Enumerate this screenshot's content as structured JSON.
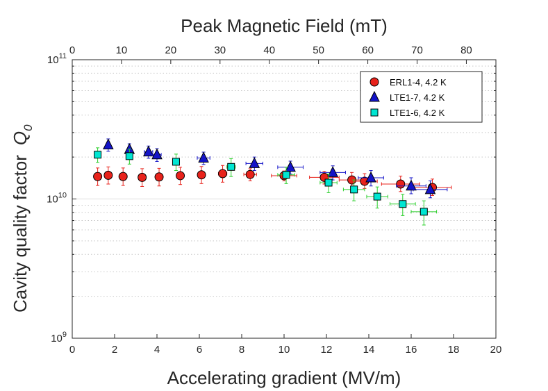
{
  "chart_data": {
    "type": "scatter",
    "title": "",
    "xlabel": "Accelerating gradient (MV/m)",
    "ylabel": "Cavity quality factor",
    "ylabel_symbol": "Q",
    "ylabel_subscript": "0",
    "x2label": "Peak Magnetic Field (mT)",
    "xlim": [
      0,
      20
    ],
    "ylim": [
      1000000000.0,
      100000000000.0
    ],
    "yscale": "log",
    "x2lim": [
      0,
      86
    ],
    "xticks": [
      0,
      2,
      4,
      6,
      8,
      10,
      12,
      14,
      16,
      18,
      20
    ],
    "x2ticks": [
      0,
      10,
      20,
      30,
      40,
      50,
      60,
      70,
      80
    ],
    "yticks": [
      {
        "value": 1000000000.0,
        "base": "10",
        "exp": "9"
      },
      {
        "value": 10000000000.0,
        "base": "10",
        "exp": "10"
      },
      {
        "value": 100000000000.0,
        "base": "10",
        "exp": "11"
      }
    ],
    "grid": "horizontal-dotted",
    "legend_position": "top-right",
    "series": [
      {
        "name": "ERL1-4, 4.2 K",
        "marker": "circle",
        "color": "#e8221b",
        "err_color": "#e8221b",
        "points": [
          {
            "x": 1.2,
            "y": 14500000000.0,
            "xerr": 0,
            "yerr_lo": 2000000000.0,
            "yerr_hi": 2200000000.0
          },
          {
            "x": 1.7,
            "y": 14800000000.0,
            "xerr": 0,
            "yerr_lo": 2000000000.0,
            "yerr_hi": 2200000000.0
          },
          {
            "x": 2.4,
            "y": 14500000000.0,
            "xerr": 0,
            "yerr_lo": 2000000000.0,
            "yerr_hi": 2200000000.0
          },
          {
            "x": 3.3,
            "y": 14300000000.0,
            "xerr": 0,
            "yerr_lo": 2000000000.0,
            "yerr_hi": 2200000000.0
          },
          {
            "x": 4.1,
            "y": 14400000000.0,
            "xerr": 0,
            "yerr_lo": 2000000000.0,
            "yerr_hi": 2200000000.0
          },
          {
            "x": 5.1,
            "y": 14700000000.0,
            "xerr": 0.1,
            "yerr_lo": 2000000000.0,
            "yerr_hi": 2200000000.0
          },
          {
            "x": 6.1,
            "y": 14900000000.0,
            "xerr": 0.15,
            "yerr_lo": 2000000000.0,
            "yerr_hi": 2200000000.0
          },
          {
            "x": 7.1,
            "y": 15200000000.0,
            "xerr": 0.2,
            "yerr_lo": 2000000000.0,
            "yerr_hi": 2200000000.0
          },
          {
            "x": 8.4,
            "y": 15000000000.0,
            "xerr": 0.3,
            "yerr_lo": 1500000000.0,
            "yerr_hi": 1500000000.0
          },
          {
            "x": 10.0,
            "y": 14700000000.0,
            "xerr": 0.6,
            "yerr_lo": 1200000000.0,
            "yerr_hi": 1200000000.0
          },
          {
            "x": 11.9,
            "y": 14300000000.0,
            "xerr": 0.7,
            "yerr_lo": 1500000000.0,
            "yerr_hi": 1500000000.0
          },
          {
            "x": 13.2,
            "y": 13700000000.0,
            "xerr": 0.6,
            "yerr_lo": 1500000000.0,
            "yerr_hi": 1800000000.0
          },
          {
            "x": 13.8,
            "y": 13400000000.0,
            "xerr": 0.6,
            "yerr_lo": 1500000000.0,
            "yerr_hi": 1800000000.0
          },
          {
            "x": 15.5,
            "y": 12800000000.0,
            "xerr": 0.9,
            "yerr_lo": 1500000000.0,
            "yerr_hi": 1800000000.0
          },
          {
            "x": 17.0,
            "y": 12100000000.0,
            "xerr": 0.9,
            "yerr_lo": 1500000000.0,
            "yerr_hi": 1800000000.0
          }
        ]
      },
      {
        "name": "LTE1-7, 4.2 K",
        "marker": "triangle",
        "color": "#1414c8",
        "err_color": "#1414c8",
        "points": [
          {
            "x": 1.7,
            "y": 24500000000.0,
            "xerr": 0,
            "yerr_lo": 2500000000.0,
            "yerr_hi": 2500000000.0
          },
          {
            "x": 2.7,
            "y": 22700000000.0,
            "xerr": 0,
            "yerr_lo": 2200000000.0,
            "yerr_hi": 2200000000.0
          },
          {
            "x": 3.6,
            "y": 21800000000.0,
            "xerr": 0.2,
            "yerr_lo": 2200000000.0,
            "yerr_hi": 2200000000.0
          },
          {
            "x": 4.0,
            "y": 20800000000.0,
            "xerr": 0.2,
            "yerr_lo": 2200000000.0,
            "yerr_hi": 2200000000.0
          },
          {
            "x": 6.2,
            "y": 19700000000.0,
            "xerr": 0.3,
            "yerr_lo": 2000000000.0,
            "yerr_hi": 2000000000.0
          },
          {
            "x": 8.6,
            "y": 18000000000.0,
            "xerr": 0.4,
            "yerr_lo": 2000000000.0,
            "yerr_hi": 2000000000.0
          },
          {
            "x": 10.3,
            "y": 16900000000.0,
            "xerr": 0.6,
            "yerr_lo": 1800000000.0,
            "yerr_hi": 1800000000.0
          },
          {
            "x": 12.3,
            "y": 15500000000.0,
            "xerr": 0.6,
            "yerr_lo": 1800000000.0,
            "yerr_hi": 1800000000.0
          },
          {
            "x": 14.1,
            "y": 14200000000.0,
            "xerr": 0.6,
            "yerr_lo": 1800000000.0,
            "yerr_hi": 1800000000.0
          },
          {
            "x": 16.0,
            "y": 12400000000.0,
            "xerr": 0.7,
            "yerr_lo": 1500000000.0,
            "yerr_hi": 1800000000.0
          },
          {
            "x": 16.9,
            "y": 11700000000.0,
            "xerr": 0.8,
            "yerr_lo": 1500000000.0,
            "yerr_hi": 1800000000.0
          }
        ]
      },
      {
        "name": "LTE1-6, 4.2 K",
        "marker": "square",
        "color": "#00e6d2",
        "err_color": "#2ccf2c",
        "points": [
          {
            "x": 1.2,
            "y": 20800000000.0,
            "xerr": 0,
            "yerr_lo": 2500000000.0,
            "yerr_hi": 2500000000.0
          },
          {
            "x": 2.7,
            "y": 20300000000.0,
            "xerr": 0,
            "yerr_lo": 2500000000.0,
            "yerr_hi": 2500000000.0
          },
          {
            "x": 4.9,
            "y": 18500000000.0,
            "xerr": 0,
            "yerr_lo": 2500000000.0,
            "yerr_hi": 2500000000.0
          },
          {
            "x": 7.5,
            "y": 17000000000.0,
            "xerr": 0.2,
            "yerr_lo": 2500000000.0,
            "yerr_hi": 2500000000.0
          },
          {
            "x": 10.1,
            "y": 14900000000.0,
            "xerr": 0.4,
            "yerr_lo": 2000000000.0,
            "yerr_hi": 2000000000.0
          },
          {
            "x": 12.1,
            "y": 13100000000.0,
            "xerr": 0.4,
            "yerr_lo": 2000000000.0,
            "yerr_hi": 2000000000.0
          },
          {
            "x": 13.3,
            "y": 11700000000.0,
            "xerr": 0.5,
            "yerr_lo": 2000000000.0,
            "yerr_hi": 2000000000.0
          },
          {
            "x": 14.4,
            "y": 10400000000.0,
            "xerr": 0.5,
            "yerr_lo": 1800000000.0,
            "yerr_hi": 1800000000.0
          },
          {
            "x": 15.6,
            "y": 9200000000.0,
            "xerr": 0.6,
            "yerr_lo": 1600000000.0,
            "yerr_hi": 1600000000.0
          },
          {
            "x": 16.6,
            "y": 8100000000.0,
            "xerr": 0.6,
            "yerr_lo": 1600000000.0,
            "yerr_hi": 1600000000.0
          }
        ]
      }
    ]
  }
}
